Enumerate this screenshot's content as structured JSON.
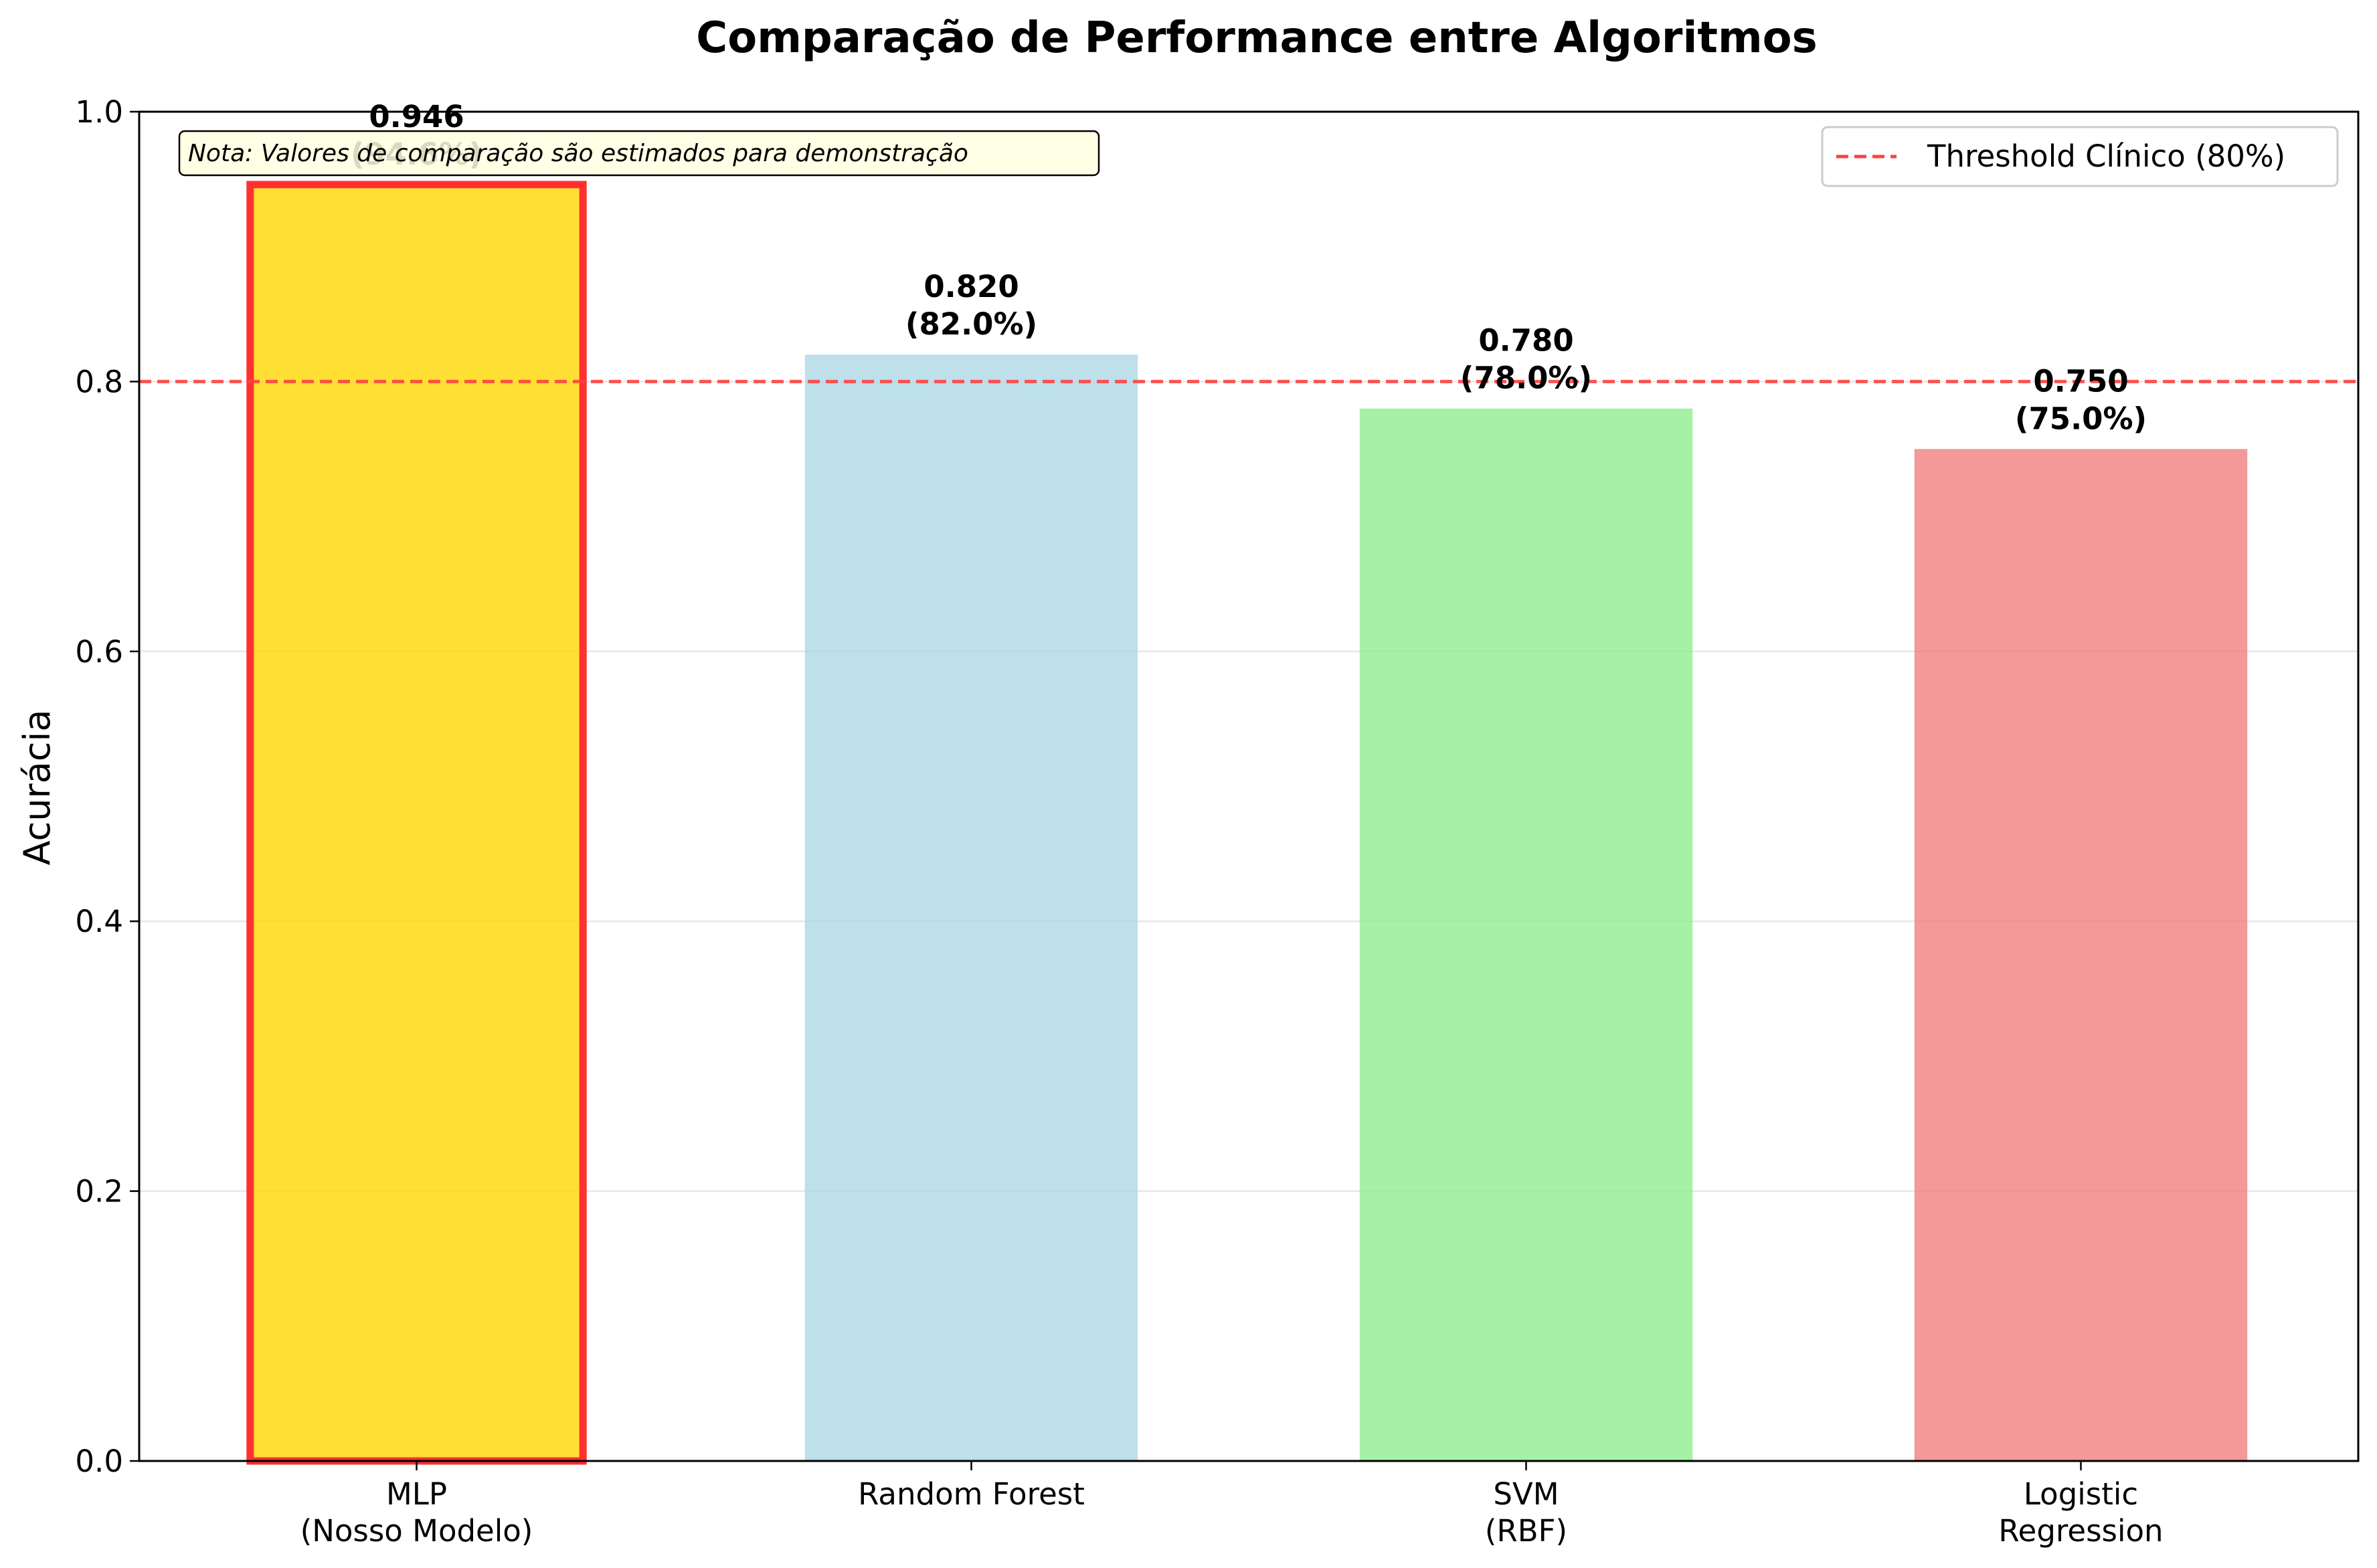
{
  "chart_data": {
    "type": "bar",
    "title": "Comparação de Performance entre Algoritmos",
    "ylabel": "Acurácia",
    "xlabel": "",
    "ylim": [
      0,
      1.0
    ],
    "yticks": [
      "0.0",
      "0.2",
      "0.4",
      "0.6",
      "0.8",
      "1.0"
    ],
    "categories": [
      [
        "MLP",
        "(Nosso Modelo)"
      ],
      [
        "Random Forest"
      ],
      [
        "SVM",
        "(RBF)"
      ],
      [
        "Logistic",
        "Regression"
      ]
    ],
    "values": [
      0.946,
      0.82,
      0.78,
      0.75
    ],
    "value_labels": [
      [
        "0.946",
        "(94.6%)"
      ],
      [
        "0.820",
        "(82.0%)"
      ],
      [
        "0.780",
        "(78.0%)"
      ],
      [
        "0.750",
        "(75.0%)"
      ]
    ],
    "colors": [
      "#FFD700",
      "#ADD8E6",
      "#90EE90",
      "#F08080"
    ],
    "highlight": {
      "index": 0,
      "edge_color": "#FF3030"
    },
    "threshold": {
      "value": 0.8,
      "label": "Threshold Clínico (80%)",
      "color": "#FF4040",
      "style": "dashed"
    },
    "annotation": "Nota: Valores de comparação são estimados para demonstração",
    "legend_position": "upper right",
    "grid": "y"
  }
}
